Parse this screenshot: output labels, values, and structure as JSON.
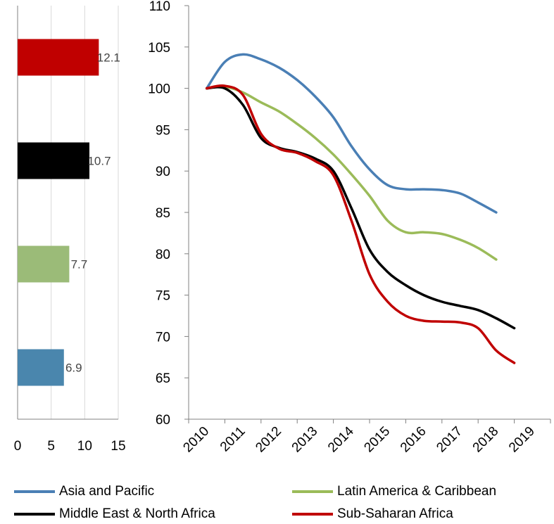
{
  "chart_data": [
    {
      "type": "bar",
      "orientation": "horizontal",
      "categories": [
        "Sub-Saharan Africa",
        "Middle East & North Africa",
        "Latin America & Caribbean",
        "Asia and Pacific"
      ],
      "values": [
        12.1,
        10.7,
        7.7,
        6.9
      ],
      "value_labels": [
        "12.1",
        "10.7",
        "7.7",
        "6.9"
      ],
      "colors": [
        "#c00000",
        "#000000",
        "#9bbb78",
        "#4a86ad"
      ],
      "xlim": [
        0,
        15
      ],
      "xticks": [
        "0",
        "5",
        "10",
        "15"
      ],
      "grid": "vertical"
    },
    {
      "type": "line",
      "x": [
        "2010",
        "2011",
        "2012",
        "2013",
        "2014",
        "2015",
        "2016",
        "2017",
        "2018",
        "2019"
      ],
      "ylim": [
        60,
        110
      ],
      "yticks": [
        "60",
        "65",
        "70",
        "75",
        "80",
        "85",
        "90",
        "95",
        "100",
        "105",
        "110"
      ],
      "grid": false,
      "series": [
        {
          "name": "Asia and Pacific",
          "color": "#4a7fb5",
          "points": [
            [
              2010.0,
              100
            ],
            [
              2010.5,
              103.2
            ],
            [
              2011.0,
              104.1
            ],
            [
              2011.5,
              103.5
            ],
            [
              2012.0,
              102.5
            ],
            [
              2012.5,
              101.0
            ],
            [
              2013.0,
              99.0
            ],
            [
              2013.5,
              96.5
            ],
            [
              2014.0,
              93.0
            ],
            [
              2014.5,
              90.2
            ],
            [
              2015.0,
              88.3
            ],
            [
              2015.5,
              87.8
            ],
            [
              2016.0,
              87.8
            ],
            [
              2016.5,
              87.7
            ],
            [
              2017.0,
              87.3
            ],
            [
              2017.5,
              86.2
            ],
            [
              2018.0,
              85.0
            ]
          ]
        },
        {
          "name": "Latin America & Caribbean",
          "color": "#9bbb59",
          "points": [
            [
              2010.0,
              100
            ],
            [
              2010.5,
              100.2
            ],
            [
              2011.0,
              99.5
            ],
            [
              2011.5,
              98.3
            ],
            [
              2012.0,
              97.2
            ],
            [
              2012.5,
              95.7
            ],
            [
              2013.0,
              94.0
            ],
            [
              2013.5,
              92.0
            ],
            [
              2014.0,
              89.6
            ],
            [
              2014.5,
              87.0
            ],
            [
              2015.0,
              84.0
            ],
            [
              2015.5,
              82.6
            ],
            [
              2016.0,
              82.6
            ],
            [
              2016.5,
              82.4
            ],
            [
              2017.0,
              81.7
            ],
            [
              2017.5,
              80.7
            ],
            [
              2018.0,
              79.3
            ]
          ]
        },
        {
          "name": "Middle East & North Africa",
          "color": "#000000",
          "points": [
            [
              2010.0,
              100
            ],
            [
              2010.5,
              100.0
            ],
            [
              2011.0,
              98.0
            ],
            [
              2011.5,
              94.0
            ],
            [
              2012.0,
              92.8
            ],
            [
              2012.5,
              92.3
            ],
            [
              2013.0,
              91.5
            ],
            [
              2013.5,
              90.0
            ],
            [
              2014.0,
              85.5
            ],
            [
              2014.5,
              80.5
            ],
            [
              2015.0,
              77.8
            ],
            [
              2015.5,
              76.2
            ],
            [
              2016.0,
              75.0
            ],
            [
              2016.5,
              74.2
            ],
            [
              2017.0,
              73.7
            ],
            [
              2017.5,
              73.2
            ],
            [
              2018.0,
              72.2
            ],
            [
              2018.5,
              71.0
            ]
          ]
        },
        {
          "name": "Sub-Saharan Africa",
          "color": "#c00000",
          "points": [
            [
              2010.0,
              100
            ],
            [
              2010.5,
              100.3
            ],
            [
              2011.0,
              99.2
            ],
            [
              2011.5,
              94.5
            ],
            [
              2012.0,
              92.7
            ],
            [
              2012.5,
              92.2
            ],
            [
              2013.0,
              91.2
            ],
            [
              2013.5,
              89.5
            ],
            [
              2014.0,
              84.0
            ],
            [
              2014.5,
              77.5
            ],
            [
              2015.0,
              74.2
            ],
            [
              2015.5,
              72.5
            ],
            [
              2016.0,
              71.9
            ],
            [
              2016.5,
              71.8
            ],
            [
              2017.0,
              71.7
            ],
            [
              2017.5,
              71.0
            ],
            [
              2018.0,
              68.3
            ],
            [
              2018.5,
              66.8
            ]
          ]
        }
      ]
    }
  ],
  "legend": {
    "items": [
      {
        "label": "Asia and Pacific",
        "color": "#4a7fb5"
      },
      {
        "label": "Latin America & Caribbean",
        "color": "#9bbb59"
      },
      {
        "label": "Middle East & North Africa",
        "color": "#000000"
      },
      {
        "label": "Sub-Saharan Africa",
        "color": "#c00000"
      }
    ]
  }
}
